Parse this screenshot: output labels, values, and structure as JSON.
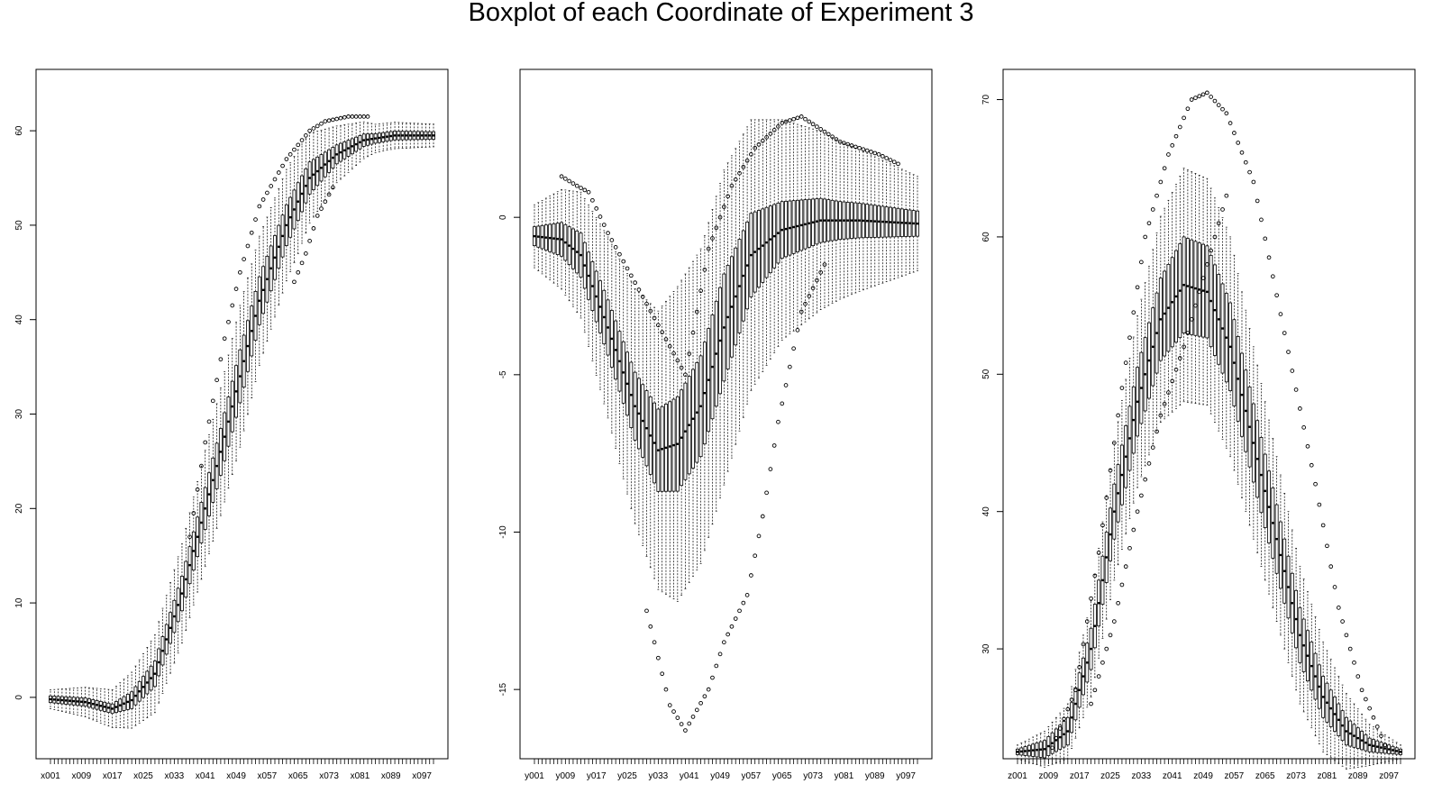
{
  "title": "Boxplot of each Coordinate of Experiment 3",
  "colors": {
    "box": "#000000",
    "median": "#000000",
    "background": "#ffffff"
  },
  "chart_data": [
    {
      "type": "boxplot",
      "variable_prefix": "x",
      "n_boxes": 100,
      "tick_labels": [
        "x001",
        "x009",
        "x017",
        "x025",
        "x033",
        "x041",
        "x049",
        "x057",
        "x065",
        "x073",
        "x081",
        "x089",
        "x097"
      ],
      "ylim": [
        -6.5,
        66.5
      ],
      "yticks": [
        0,
        10,
        20,
        30,
        40,
        50,
        60
      ],
      "grid": false,
      "median_knots": [
        [
          1,
          -0.2
        ],
        [
          10,
          -0.5
        ],
        [
          17,
          -1.2
        ],
        [
          22,
          -0.3
        ],
        [
          28,
          2.5
        ],
        [
          35,
          11
        ],
        [
          45,
          26
        ],
        [
          55,
          42
        ],
        [
          62,
          50
        ],
        [
          68,
          55
        ],
        [
          75,
          57.5
        ],
        [
          82,
          59
        ],
        [
          90,
          59.5
        ],
        [
          100,
          59.5
        ]
      ],
      "box_halfwidth_knots": [
        [
          1,
          0.35
        ],
        [
          17,
          0.5
        ],
        [
          30,
          1.5
        ],
        [
          50,
          2.8
        ],
        [
          65,
          2
        ],
        [
          75,
          1
        ],
        [
          85,
          0.5
        ],
        [
          100,
          0.4
        ]
      ],
      "whisker_halfwidth_knots": [
        [
          1,
          1
        ],
        [
          17,
          2
        ],
        [
          30,
          4.5
        ],
        [
          50,
          7.5
        ],
        [
          65,
          5.5
        ],
        [
          75,
          3
        ],
        [
          85,
          1.5
        ],
        [
          100,
          1.2
        ]
      ],
      "outliers_upper_knots": [
        [
          37,
          17
        ],
        [
          41,
          27
        ],
        [
          46,
          38
        ],
        [
          50,
          45
        ],
        [
          55,
          52
        ],
        [
          62,
          57
        ],
        [
          68,
          60
        ],
        [
          72,
          61
        ],
        [
          78,
          61.5
        ],
        [
          83,
          61.5
        ]
      ],
      "outliers_lower_knots": [
        [
          64,
          44
        ],
        [
          67,
          47
        ],
        [
          70,
          51
        ],
        [
          74,
          54
        ]
      ]
    },
    {
      "type": "boxplot",
      "variable_prefix": "y",
      "n_boxes": 100,
      "tick_labels": [
        "y001",
        "y009",
        "y017",
        "y025",
        "y033",
        "y041",
        "y049",
        "y057",
        "y065",
        "y073",
        "y081",
        "y089",
        "y097"
      ],
      "ylim": [
        -17.2,
        4.7
      ],
      "yticks": [
        0,
        -5,
        -10,
        -15
      ],
      "grid": false,
      "median_knots": [
        [
          1,
          -0.6
        ],
        [
          8,
          -0.7
        ],
        [
          13,
          -1.2
        ],
        [
          20,
          -3.5
        ],
        [
          27,
          -6
        ],
        [
          33,
          -7.4
        ],
        [
          38,
          -7.2
        ],
        [
          44,
          -6
        ],
        [
          50,
          -3.5
        ],
        [
          57,
          -1.2
        ],
        [
          65,
          -0.4
        ],
        [
          75,
          -0.1
        ],
        [
          85,
          -0.1
        ],
        [
          100,
          -0.2
        ]
      ],
      "box_halfwidth_knots": [
        [
          1,
          0.3
        ],
        [
          13,
          0.7
        ],
        [
          25,
          1
        ],
        [
          38,
          1.5
        ],
        [
          50,
          1.7
        ],
        [
          65,
          0.9
        ],
        [
          80,
          0.6
        ],
        [
          100,
          0.4
        ]
      ],
      "whisker_halfwidth_knots": [
        [
          1,
          1
        ],
        [
          13,
          2
        ],
        [
          25,
          3.5
        ],
        [
          38,
          5
        ],
        [
          50,
          5
        ],
        [
          65,
          3.5
        ],
        [
          80,
          2.5
        ],
        [
          100,
          1.5
        ]
      ],
      "outliers_upper_knots": [
        [
          8,
          1.3
        ],
        [
          12,
          1
        ],
        [
          15,
          0.8
        ],
        [
          20,
          -0.5
        ],
        [
          40,
          -5
        ],
        [
          46,
          -1
        ],
        [
          52,
          1
        ],
        [
          58,
          2.2
        ],
        [
          65,
          3
        ],
        [
          70,
          3.2
        ],
        [
          80,
          2.4
        ],
        [
          90,
          2
        ],
        [
          95,
          1.7
        ]
      ],
      "outliers_lower_knots": [
        [
          30,
          -12.5
        ],
        [
          36,
          -15.5
        ],
        [
          40,
          -16.3
        ],
        [
          46,
          -15
        ],
        [
          50,
          -13.5
        ],
        [
          56,
          -12
        ],
        [
          60,
          -9.5
        ],
        [
          64,
          -6.5
        ],
        [
          70,
          -3
        ],
        [
          76,
          -1.5
        ]
      ]
    },
    {
      "type": "boxplot",
      "variable_prefix": "z",
      "n_boxes": 100,
      "tick_labels": [
        "z001",
        "z009",
        "z017",
        "z025",
        "z033",
        "z041",
        "z049",
        "z057",
        "z065",
        "z073",
        "z081",
        "z089",
        "z097"
      ],
      "ylim": [
        22,
        72.2
      ],
      "yticks": [
        30,
        40,
        50,
        60,
        70
      ],
      "grid": false,
      "median_knots": [
        [
          1,
          22.5
        ],
        [
          8,
          22.7
        ],
        [
          14,
          24
        ],
        [
          20,
          30
        ],
        [
          26,
          40
        ],
        [
          32,
          48
        ],
        [
          38,
          54
        ],
        [
          44,
          56.5
        ],
        [
          50,
          56
        ],
        [
          56,
          52
        ],
        [
          62,
          45
        ],
        [
          68,
          38
        ],
        [
          74,
          31
        ],
        [
          80,
          26.5
        ],
        [
          86,
          24
        ],
        [
          92,
          23
        ],
        [
          100,
          22.5
        ]
      ],
      "box_halfwidth_knots": [
        [
          1,
          0.2
        ],
        [
          14,
          1
        ],
        [
          26,
          2
        ],
        [
          38,
          3
        ],
        [
          44,
          3.5
        ],
        [
          56,
          3.2
        ],
        [
          68,
          2.5
        ],
        [
          80,
          1.5
        ],
        [
          92,
          0.5
        ],
        [
          100,
          0.2
        ]
      ],
      "whisker_halfwidth_knots": [
        [
          1,
          0.5
        ],
        [
          14,
          2
        ],
        [
          26,
          5
        ],
        [
          38,
          7.5
        ],
        [
          44,
          8.5
        ],
        [
          56,
          8
        ],
        [
          68,
          6
        ],
        [
          80,
          4
        ],
        [
          92,
          1.5
        ],
        [
          100,
          0.5
        ]
      ],
      "outliers_upper_knots": [
        [
          10,
          22.8
        ],
        [
          16,
          27
        ],
        [
          22,
          37
        ],
        [
          28,
          49
        ],
        [
          34,
          60
        ],
        [
          40,
          66
        ],
        [
          46,
          70
        ],
        [
          50,
          70.5
        ],
        [
          55,
          69
        ],
        [
          62,
          64
        ],
        [
          70,
          53
        ],
        [
          78,
          42
        ],
        [
          84,
          33
        ],
        [
          90,
          27
        ],
        [
          96,
          23
        ]
      ],
      "outliers_lower_knots": [
        [
          20,
          26
        ],
        [
          26,
          32
        ],
        [
          32,
          40
        ],
        [
          38,
          47
        ],
        [
          44,
          52
        ],
        [
          50,
          58
        ],
        [
          55,
          63
        ]
      ]
    }
  ]
}
